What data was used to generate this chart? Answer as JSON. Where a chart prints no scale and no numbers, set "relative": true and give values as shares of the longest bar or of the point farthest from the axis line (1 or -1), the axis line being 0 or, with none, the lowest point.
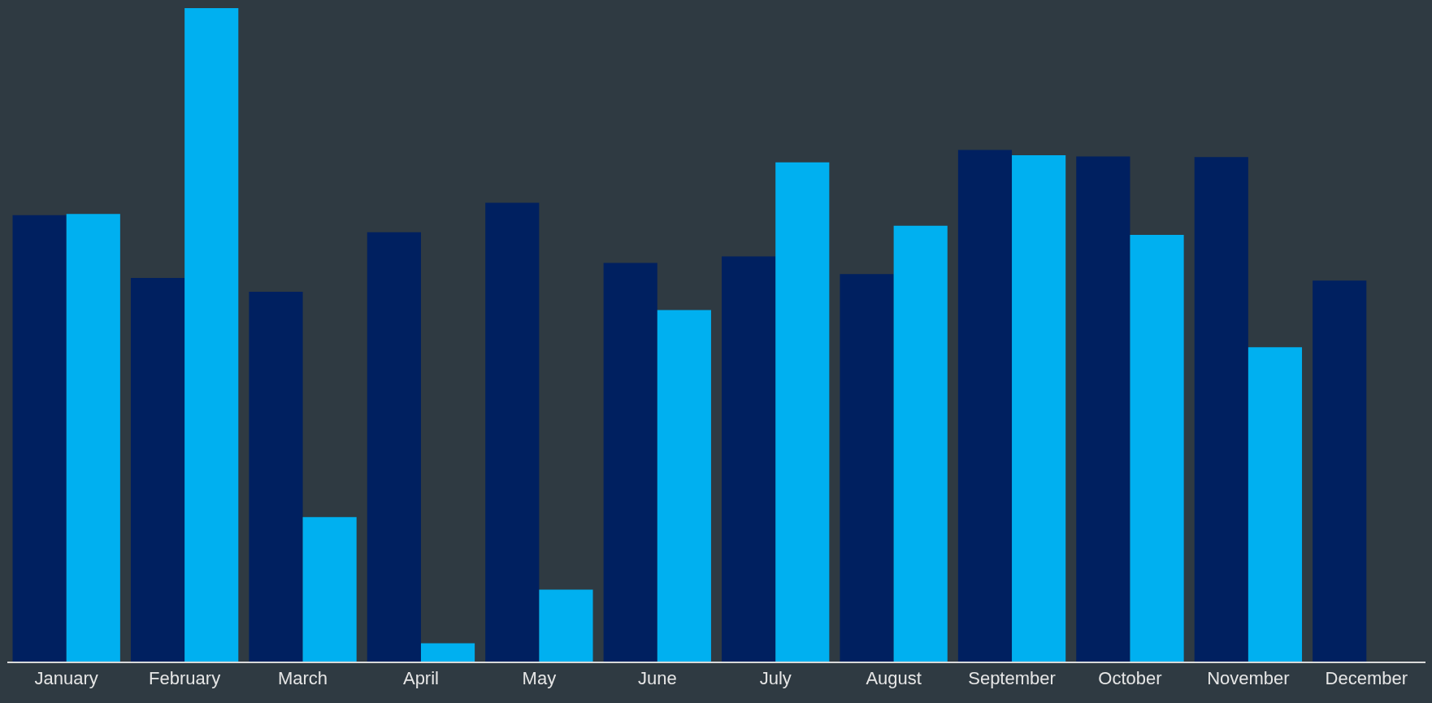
{
  "chart_data": {
    "type": "bar",
    "relative": true,
    "categories": [
      "January",
      "February",
      "March",
      "April",
      "May",
      "June",
      "July",
      "August",
      "September",
      "October",
      "November",
      "December"
    ],
    "series": [
      {
        "color": "#002060",
        "values": [
          0.683,
          0.587,
          0.566,
          0.657,
          0.702,
          0.61,
          0.62,
          0.593,
          0.783,
          0.773,
          0.772,
          0.583
        ]
      },
      {
        "color": "#00b0f0",
        "values": [
          0.685,
          1,
          0.221,
          0.028,
          0.11,
          0.538,
          0.764,
          0.667,
          0.775,
          0.653,
          0.481,
          null
        ]
      }
    ],
    "grid": false
  }
}
